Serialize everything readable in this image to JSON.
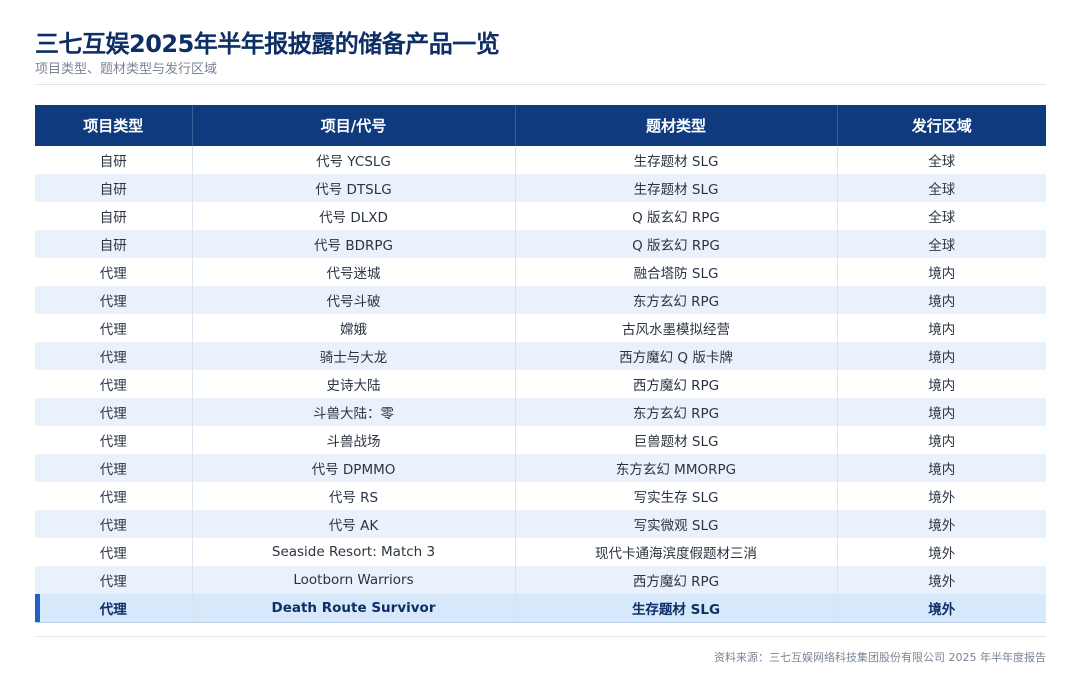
{
  "header": {
    "title": "三七互娱2025年半年报披露的储备产品一览",
    "subtitle": "项目类型、题材类型与发行区域"
  },
  "table": {
    "columns": [
      "项目类型",
      "项目/代号",
      "题材类型",
      "发行区域"
    ],
    "rows": [
      [
        "自研",
        "代号 YCSLG",
        "生存题材 SLG",
        "全球"
      ],
      [
        "自研",
        "代号 DTSLG",
        "生存题材 SLG",
        "全球"
      ],
      [
        "自研",
        "代号 DLXD",
        "Q 版玄幻 RPG",
        "全球"
      ],
      [
        "自研",
        "代号 BDRPG",
        "Q 版玄幻 RPG",
        "全球"
      ],
      [
        "代理",
        "代号迷城",
        "融合塔防 SLG",
        "境内"
      ],
      [
        "代理",
        "代号斗破",
        "东方玄幻 RPG",
        "境内"
      ],
      [
        "代理",
        "嫦娥",
        "古风水墨模拟经营",
        "境内"
      ],
      [
        "代理",
        "骑士与大龙",
        "西方魔幻 Q 版卡牌",
        "境内"
      ],
      [
        "代理",
        "史诗大陆",
        "西方魔幻 RPG",
        "境内"
      ],
      [
        "代理",
        "斗兽大陆：零",
        "东方玄幻 RPG",
        "境内"
      ],
      [
        "代理",
        "斗兽战场",
        "巨兽题材 SLG",
        "境内"
      ],
      [
        "代理",
        "代号 DPMMO",
        "东方玄幻 MMORPG",
        "境内"
      ],
      [
        "代理",
        "代号 RS",
        "写实生存 SLG",
        "境外"
      ],
      [
        "代理",
        "代号 AK",
        "写实微观 SLG",
        "境外"
      ],
      [
        "代理",
        "Seaside Resort: Match 3",
        "现代卡通海滨度假题材三消",
        "境外"
      ],
      [
        "代理",
        "Lootborn Warriors",
        "西方魔幻 RPG",
        "境外"
      ],
      [
        "代理",
        "Death Route Survivor",
        "生存题材 SLG",
        "境外"
      ]
    ]
  },
  "footer": {
    "source": "资料来源：三七互娱网络科技集团股份有限公司 2025 年半年度报告"
  }
}
